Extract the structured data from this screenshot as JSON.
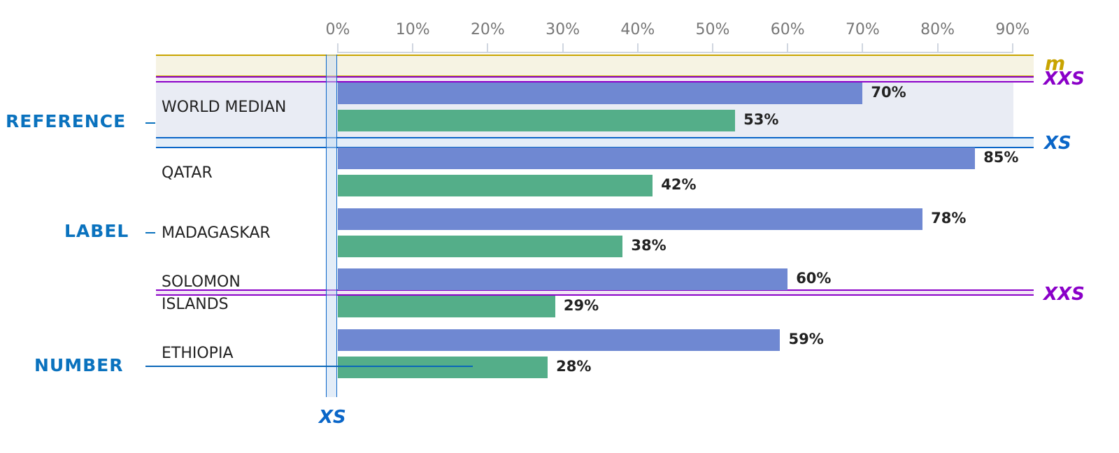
{
  "chart_data": {
    "type": "bar",
    "orientation": "horizontal",
    "xlim": [
      0,
      90
    ],
    "ticks": [
      "0%",
      "10%",
      "20%",
      "30%",
      "40%",
      "50%",
      "60%",
      "70%",
      "80%",
      "90%"
    ],
    "categories": [
      "WORLD MEDIAN",
      "QATAR",
      "MADAGASKAR",
      "SOLOMON ISLANDS",
      "ETHIOPIA"
    ],
    "category_lines": [
      [
        "WORLD MEDIAN"
      ],
      [
        "QATAR"
      ],
      [
        "MADAGASKAR"
      ],
      [
        "SOLOMON",
        "ISLANDS"
      ],
      [
        "ETHIOPIA"
      ]
    ],
    "series": [
      {
        "name": "series-1",
        "color": "#6f88d2",
        "values": [
          70,
          85,
          78,
          60,
          59
        ],
        "labels": [
          "70%",
          "85%",
          "78%",
          "60%",
          "59%"
        ]
      },
      {
        "name": "series-2",
        "color": "#54ae89",
        "values": [
          53,
          42,
          38,
          29,
          28
        ],
        "labels": [
          "53%",
          "42%",
          "38%",
          "29%",
          "28%"
        ]
      }
    ]
  },
  "annotations": {
    "reference": "REFERENCE",
    "label": "LABEL",
    "number": "NUMBER"
  },
  "spacing": {
    "m": "m",
    "xxs_top": "XXS",
    "xs_right": "XS",
    "xxs_mid": "XXS",
    "xs_bottom": "XS"
  }
}
